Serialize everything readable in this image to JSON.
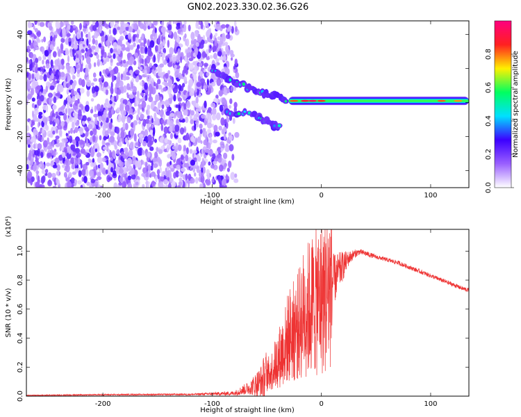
{
  "title": "GN02.2023.330.02.36.G26",
  "chart_data": [
    {
      "type": "heatmap",
      "xlabel": "Height of straight line (km)",
      "ylabel": "Frequency (Hz)",
      "xlim": [
        -270,
        135
      ],
      "ylim": [
        -50,
        48
      ],
      "x_ticks": [
        -200,
        -100,
        0,
        100
      ],
      "y_ticks": [
        -40,
        -20,
        0,
        20,
        40
      ],
      "colorbar": {
        "label": "Normalized spectral amplitude",
        "range": [
          0,
          1
        ],
        "ticks": [
          0.0,
          0.2,
          0.4,
          0.6,
          0.8
        ],
        "colors": [
          "#ffffff",
          "#9a60ff",
          "#3c00ff",
          "#00e0ff",
          "#00ff60",
          "#fff000",
          "#ff2020",
          "#ff007f"
        ]
      },
      "features": {
        "noise_region_x": [
          -270,
          -85
        ],
        "main_band": {
          "x_start": -30,
          "x_end": 135,
          "frequency": 1
        },
        "branch_upper": {
          "x": [
            -100,
            -80,
            -60,
            -45,
            -30
          ],
          "frequency": [
            20,
            12,
            7,
            4,
            2
          ]
        },
        "branch_lower": {
          "x": [
            -85,
            -60,
            -45,
            -38
          ],
          "frequency": [
            -5,
            -8,
            -13,
            -15
          ]
        }
      }
    },
    {
      "type": "line",
      "xlabel": "Height of straight line (km)",
      "ylabel": "SNR (10 * v/v)",
      "y_multiplier": "(x10⁴)",
      "xlim": [
        -270,
        135
      ],
      "ylim": [
        0,
        1.15
      ],
      "x_ticks": [
        -200,
        -100,
        0,
        100
      ],
      "y_ticks": [
        0.0,
        0.2,
        0.4,
        0.6,
        0.8,
        1.0
      ],
      "series": [
        {
          "color": "#ee3333",
          "x": [
            -270,
            -200,
            -120,
            -80,
            -65,
            -55,
            -45,
            -38,
            -33,
            -30,
            -25,
            -22,
            -20,
            -18,
            -15,
            -12,
            -10,
            -5,
            0,
            5,
            10,
            15,
            20,
            25,
            30,
            35,
            40,
            50,
            60,
            70,
            80,
            90,
            100,
            110,
            120,
            130,
            135
          ],
          "y": [
            0.005,
            0.01,
            0.012,
            0.02,
            0.06,
            0.1,
            0.18,
            0.28,
            0.35,
            0.42,
            0.45,
            0.48,
            0.5,
            0.55,
            0.58,
            0.6,
            0.62,
            0.65,
            0.68,
            0.72,
            0.78,
            0.85,
            0.9,
            0.95,
            0.98,
            0.995,
            0.985,
            0.96,
            0.94,
            0.92,
            0.89,
            0.86,
            0.83,
            0.8,
            0.77,
            0.74,
            0.73
          ],
          "spread": [
            0.003,
            0.005,
            0.006,
            0.015,
            0.05,
            0.12,
            0.3,
            0.55,
            0.7,
            0.8,
            0.75,
            0.65,
            0.6,
            0.55,
            0.5,
            0.45,
            0.42,
            0.38,
            0.34,
            0.3,
            0.2,
            0.14,
            0.1,
            0.05,
            0.03,
            0.02,
            0.02,
            0.015,
            0.015,
            0.015,
            0.015,
            0.015,
            0.015,
            0.015,
            0.015,
            0.015,
            0.015
          ]
        }
      ]
    }
  ]
}
